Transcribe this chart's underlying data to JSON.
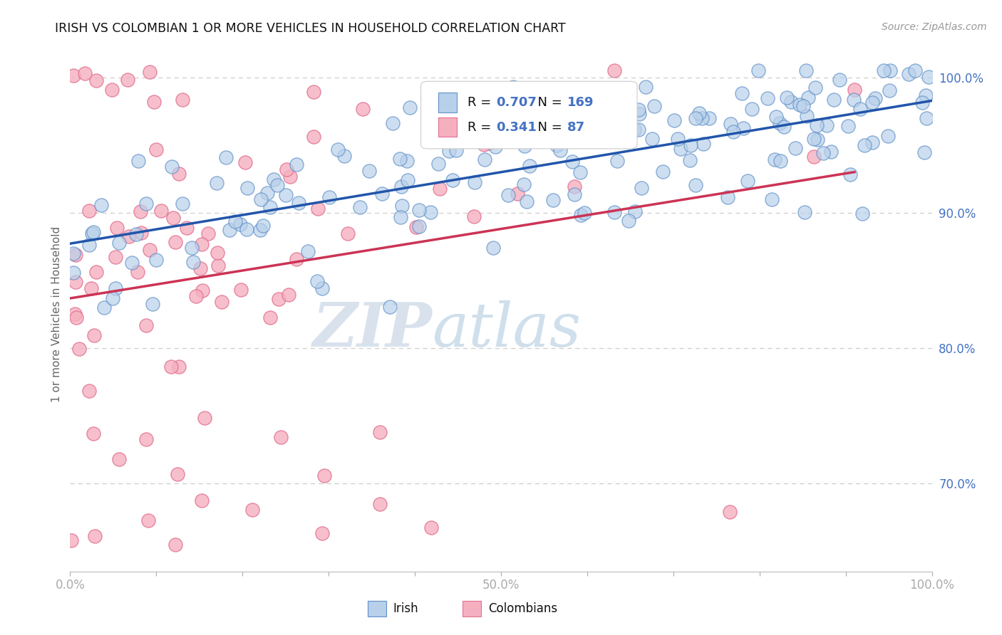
{
  "title": "IRISH VS COLOMBIAN 1 OR MORE VEHICLES IN HOUSEHOLD CORRELATION CHART",
  "source_text": "Source: ZipAtlas.com",
  "ylabel": "1 or more Vehicles in Household",
  "xlim": [
    0.0,
    1.0
  ],
  "ylim": [
    0.635,
    1.015
  ],
  "yticks": [
    0.7,
    0.8,
    0.9,
    1.0
  ],
  "ytick_labels": [
    "70.0%",
    "80.0%",
    "90.0%",
    "100.0%"
  ],
  "xticks": [
    0.0,
    0.1,
    0.2,
    0.3,
    0.4,
    0.5,
    0.6,
    0.7,
    0.8,
    0.9,
    1.0
  ],
  "xtick_labels": [
    "0.0%",
    "",
    "",
    "",
    "",
    "50.0%",
    "",
    "",
    "",
    "",
    "100.0%"
  ],
  "irish_color": "#b8d0ea",
  "colombian_color": "#f5b0c0",
  "irish_edge_color": "#6090c8",
  "colombian_edge_color": "#e07090",
  "irish_line_color": "#2255aa",
  "colombian_line_color": "#cc3355",
  "irish_R": 0.707,
  "irish_N": 169,
  "colombian_R": 0.341,
  "colombian_N": 87,
  "watermark_zip": "ZIP",
  "watermark_atlas": "atlas",
  "watermark_color_zip": "#c0cfe0",
  "watermark_color_atlas": "#a0c0d8",
  "grid_color": "#c8c8c8",
  "background_color": "#ffffff"
}
